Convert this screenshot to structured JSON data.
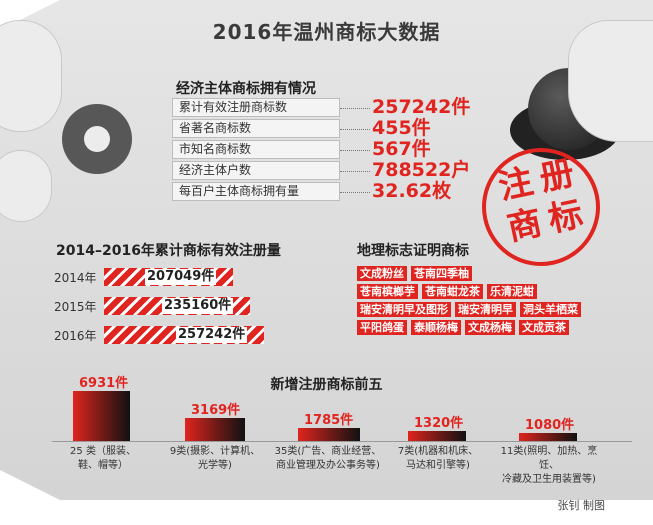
{
  "title": "2016年温州商标大数据",
  "stats": {
    "heading": "经济主体商标拥有情况",
    "rows": [
      {
        "label": "累计有效注册商标数",
        "value": "257242件"
      },
      {
        "label": "省著名商标数",
        "value": "455件"
      },
      {
        "label": "市知名商标数",
        "value": "567件"
      },
      {
        "label": "经济主体户数",
        "value": "788522户"
      },
      {
        "label": "每百户主体商标拥有量",
        "value": "32.62枚"
      }
    ]
  },
  "seal": {
    "chars": [
      "注",
      "册",
      "商",
      "标"
    ],
    "color": "#e0241f"
  },
  "geo": {
    "heading": "地理标志证明商标",
    "rows": [
      [
        "文成粉丝",
        "苍南四季柚"
      ],
      [
        "苍南槟榔芋",
        "苍南蚶龙茶",
        "乐清泥蚶"
      ],
      [
        "瑞安清明早及图形",
        "瑞安清明早",
        "洞头羊栖菜"
      ],
      [
        "平阳鸽蛋",
        "泰顺杨梅",
        "文成杨梅",
        "文成贡茶"
      ]
    ]
  },
  "colors": {
    "accent": "#e0241f",
    "dark": "#111111"
  },
  "credit": "张钊 制图",
  "chart_data": [
    {
      "type": "bar",
      "orientation": "horizontal",
      "title": "2014–2016年累计商标有效注册量",
      "categories": [
        "2014年",
        "2015年",
        "2016年"
      ],
      "values": [
        207049,
        235160,
        257242
      ],
      "value_labels": [
        "207049件",
        "235160件",
        "257242件"
      ],
      "unit": "件",
      "xlim": [
        0,
        257242
      ]
    },
    {
      "type": "bar",
      "title": "新增注册商标前五",
      "categories": [
        "25类（服装、鞋、帽等）",
        "9类(摄影、计算机、光学等)",
        "35类(广告、商业经营、商业管理及办公事务等)",
        "7类(机器和机床、马达和引擎等)",
        "11类(照明、加热、烹饪、冷藏及卫生用装置等)"
      ],
      "category_lines": [
        [
          "25 类（服装、",
          "鞋、帽等）"
        ],
        [
          "9类(摄影、计算机、",
          "光学等)"
        ],
        [
          "35类(广告、商业经营、",
          "商业管理及办公事务等)"
        ],
        [
          "7类(机器和机床、",
          "马达和引擎等)"
        ],
        [
          "11类(照明、加热、烹饪、",
          "冷藏及卫生用装置等)"
        ]
      ],
      "values": [
        6931,
        3169,
        1785,
        1320,
        1080
      ],
      "value_labels": [
        "6931件",
        "3169件",
        "1785件",
        "1320件",
        "1080件"
      ],
      "unit": "件",
      "ylim": [
        0,
        6931
      ]
    }
  ]
}
